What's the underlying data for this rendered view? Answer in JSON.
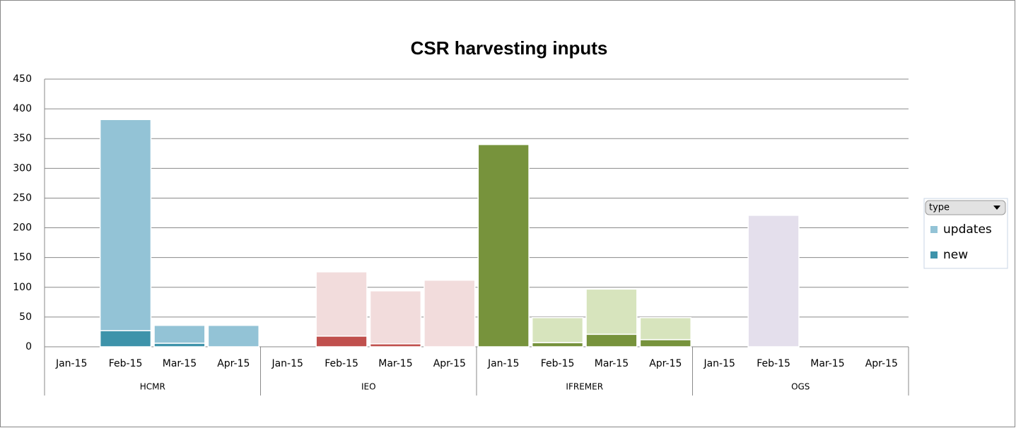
{
  "chart_data": {
    "type": "stacked-bar",
    "title": "CSR harvesting inputs",
    "categories": [
      "Jan-15",
      "Feb-15",
      "Mar-15",
      "Apr-15",
      "Jan-15",
      "Feb-15",
      "Mar-15",
      "Apr-15",
      "Jan-15",
      "Feb-15",
      "Mar-15",
      "Apr-15",
      "Jan-15",
      "Feb-15",
      "Mar-15",
      "Apr-15"
    ],
    "groups": [
      "HCMR",
      "IEO",
      "IFREMER",
      "OGS"
    ],
    "legend_title": "type",
    "series": [
      {
        "name": "new",
        "color": "#3e93aa",
        "bar_colors": [
          "#3e93aa",
          "#3e93aa",
          "#3e93aa",
          "#3e93aa",
          "#c0504d",
          "#c0504d",
          "#c0504d",
          "#c0504d",
          "#77933c",
          "#77933c",
          "#77933c",
          "#77933c",
          "#8064a2",
          "#8064a2",
          "#8064a2",
          "#8064a2"
        ],
        "values": [
          0,
          27,
          6,
          0,
          0,
          18,
          5,
          0,
          340,
          7,
          21,
          12,
          0,
          0,
          0,
          0
        ]
      },
      {
        "name": "updates",
        "color": "#93c3d6",
        "bar_colors": [
          "#93c3d6",
          "#93c3d6",
          "#93c3d6",
          "#93c3d6",
          "#f2dcdc",
          "#f2dcdc",
          "#f2dcdc",
          "#f2dcdc",
          "#d7e4bd",
          "#d7e4bd",
          "#d7e4bd",
          "#d7e4bd",
          "#e4dfec",
          "#e4dfec",
          "#e4dfec",
          "#e4dfec"
        ],
        "values": [
          0,
          355,
          30,
          36,
          0,
          108,
          89,
          112,
          0,
          42,
          76,
          37,
          0,
          221,
          0,
          0
        ]
      }
    ],
    "ylim": [
      0,
      450
    ],
    "yticks": [
      0,
      50,
      100,
      150,
      200,
      250,
      300,
      350,
      400,
      450
    ],
    "grid": true,
    "legend": "right"
  }
}
